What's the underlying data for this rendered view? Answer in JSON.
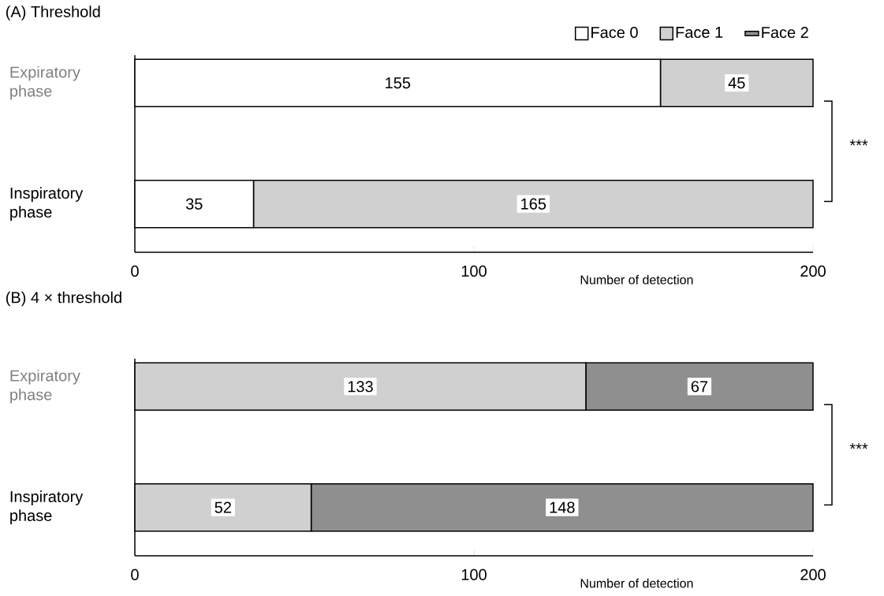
{
  "chart_data": [
    {
      "type": "bar",
      "orientation": "horizontal",
      "stacked": true,
      "title": "(A) Threshold",
      "xlabel": "Number of detection",
      "categories": [
        "Expiratory phase",
        "Inspiratory phase"
      ],
      "series": [
        {
          "name": "Face 0",
          "color": "#ffffff",
          "values": [
            155,
            35
          ]
        },
        {
          "name": "Face 1",
          "color": "#d0d0d0",
          "values": [
            45,
            165
          ]
        },
        {
          "name": "Face 2",
          "color": "#8f8f8f",
          "values": [
            null,
            null
          ]
        }
      ],
      "xlim": [
        0,
        200
      ],
      "xticks": [
        0,
        100,
        200
      ],
      "data_labels": true,
      "legend": "top right",
      "annotations": [
        "***"
      ]
    },
    {
      "type": "bar",
      "orientation": "horizontal",
      "stacked": true,
      "title": "(B) 4 × threshold",
      "xlabel": "Number of detection",
      "categories": [
        "Expiratory phase",
        "Inspiratory phase"
      ],
      "series": [
        {
          "color": "#d0d0d0",
          "values": [
            133,
            52
          ]
        },
        {
          "color": "#8f8f8f",
          "values": [
            67,
            148
          ]
        }
      ],
      "xlim": [
        0,
        200
      ],
      "xticks": [
        0,
        100,
        200
      ],
      "data_labels": true,
      "annotations": [
        "***"
      ]
    }
  ]
}
